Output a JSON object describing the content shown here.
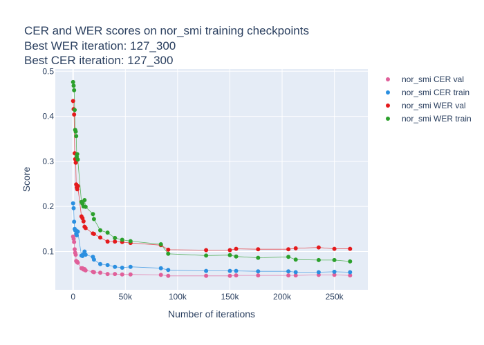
{
  "chart_data": {
    "type": "scatter",
    "title_lines": [
      "CER and WER scores on nor_smi training checkpoints",
      "Best WER iteration: 127_300",
      "Best CER iteration: 127_300"
    ],
    "xlabel": "Number of iterations",
    "ylabel": "Score",
    "xlim": [
      -17000,
      282000
    ],
    "ylim": [
      0.015,
      0.505
    ],
    "x_ticks": [
      0,
      50000,
      100000,
      150000,
      200000,
      250000
    ],
    "x_tick_labels": [
      "0",
      "50k",
      "100k",
      "150k",
      "200k",
      "250k"
    ],
    "y_ticks": [
      0.1,
      0.2,
      0.3,
      0.4,
      0.5
    ],
    "y_tick_labels": [
      "0.1",
      "0.2",
      "0.3",
      "0.4",
      "0.5"
    ],
    "grid": true,
    "legend_position": "top-right",
    "series": [
      {
        "name": "nor_smi CER val",
        "color": "#e0609a",
        "x": [
          0,
          500,
          1000,
          1500,
          2000,
          2500,
          3000,
          3500,
          4000,
          4500,
          8000,
          9000,
          10000,
          11000,
          12000,
          19000,
          20000,
          26000,
          33000,
          40000,
          47000,
          55000,
          84000,
          91000,
          127300,
          150000,
          156000,
          177000,
          206000,
          213000,
          235000,
          250000,
          265000
        ],
        "y": [
          0.133,
          0.128,
          0.121,
          0.105,
          0.097,
          0.093,
          0.079,
          0.077,
          0.077,
          0.075,
          0.063,
          0.063,
          0.06,
          0.061,
          0.058,
          0.055,
          0.054,
          0.053,
          0.05,
          0.05,
          0.049,
          0.049,
          0.048,
          0.046,
          0.046,
          0.046,
          0.047,
          0.047,
          0.047,
          0.047,
          0.048,
          0.048,
          0.047
        ]
      },
      {
        "name": "nor_smi CER train",
        "color": "#2b8fe0",
        "x": [
          0,
          500,
          1000,
          1500,
          2000,
          2500,
          3000,
          3500,
          4000,
          4500,
          8000,
          9000,
          10000,
          11000,
          12000,
          19000,
          20000,
          26000,
          33000,
          40000,
          47000,
          55000,
          84000,
          91000,
          127300,
          150000,
          156000,
          177000,
          206000,
          213000,
          235000,
          250000,
          265000
        ],
        "y": [
          0.207,
          0.196,
          0.166,
          0.15,
          0.147,
          0.147,
          0.139,
          0.136,
          0.145,
          0.144,
          0.091,
          0.09,
          0.094,
          0.1,
          0.093,
          0.088,
          0.082,
          0.072,
          0.07,
          0.066,
          0.064,
          0.066,
          0.063,
          0.059,
          0.057,
          0.057,
          0.057,
          0.056,
          0.056,
          0.054,
          0.054,
          0.055,
          0.054
        ]
      },
      {
        "name": "nor_smi WER val",
        "color": "#e41a1c",
        "x": [
          0,
          500,
          1000,
          1500,
          2000,
          2500,
          3000,
          3500,
          4000,
          4500,
          8000,
          9000,
          10000,
          11000,
          12000,
          19000,
          20000,
          26000,
          33000,
          40000,
          47000,
          55000,
          84000,
          91000,
          127300,
          150000,
          156000,
          177000,
          206000,
          213000,
          235000,
          250000,
          265000
        ],
        "y": [
          0.434,
          0.416,
          0.404,
          0.318,
          0.305,
          0.297,
          0.249,
          0.242,
          0.238,
          0.245,
          0.178,
          0.174,
          0.167,
          0.155,
          0.152,
          0.14,
          0.139,
          0.131,
          0.122,
          0.122,
          0.121,
          0.119,
          0.114,
          0.104,
          0.103,
          0.103,
          0.106,
          0.105,
          0.105,
          0.107,
          0.109,
          0.106,
          0.106
        ]
      },
      {
        "name": "nor_smi WER train",
        "color": "#2ca02c",
        "x": [
          0,
          500,
          1000,
          1500,
          2000,
          2500,
          3000,
          3500,
          4000,
          4500,
          8000,
          9000,
          10000,
          11000,
          12000,
          19000,
          20000,
          26000,
          33000,
          40000,
          47000,
          55000,
          84000,
          91000,
          127300,
          150000,
          156000,
          177000,
          206000,
          213000,
          235000,
          250000,
          265000
        ],
        "y": [
          0.476,
          0.468,
          0.458,
          0.414,
          0.37,
          0.366,
          0.356,
          0.31,
          0.316,
          0.304,
          0.21,
          0.206,
          0.2,
          0.214,
          0.199,
          0.183,
          0.172,
          0.147,
          0.142,
          0.13,
          0.126,
          0.123,
          0.116,
          0.095,
          0.091,
          0.092,
          0.089,
          0.086,
          0.088,
          0.082,
          0.081,
          0.081,
          0.078
        ]
      }
    ]
  }
}
